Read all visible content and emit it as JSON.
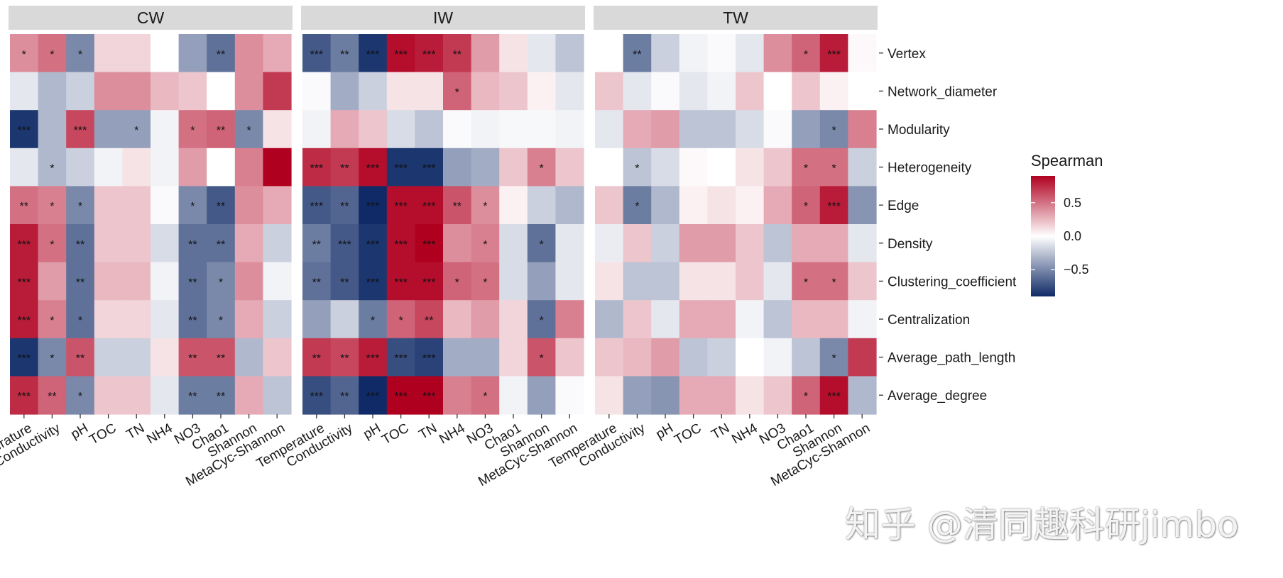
{
  "watermark": "知乎 @清同趣科研jimbo",
  "chart_data": {
    "type": "heatmap",
    "facets": [
      "CW",
      "IW",
      "TW"
    ],
    "x_labels": [
      "Temperature",
      "Conductivity",
      "pH",
      "TOC",
      "TN",
      "NH4",
      "NO3",
      "Chao1",
      "Shannon",
      "MetaCyc-Shannon"
    ],
    "y_labels": [
      "Vertex",
      "Network_diameter",
      "Modularity",
      "Heterogeneity",
      "Edge",
      "Density",
      "Clustering_coefficient",
      "Centralization",
      "Average_path_length",
      "Average_degree"
    ],
    "legend": {
      "title": "Spearman",
      "ticks": [
        0.5,
        0.0,
        -0.5
      ],
      "tick_labels": [
        "0.5",
        "0.0",
        "−0.5"
      ],
      "range": [
        -0.9,
        0.9
      ],
      "low_color": "#0f2a66",
      "mid_color": "#ffffff",
      "high_color": "#b00020"
    },
    "values": {
      "CW": [
        [
          0.4,
          0.5,
          -0.5,
          0.15,
          0.15,
          0.0,
          -0.4,
          -0.6,
          0.4,
          0.3
        ],
        [
          -0.1,
          -0.3,
          -0.2,
          0.4,
          0.4,
          0.25,
          0.2,
          0.0,
          0.4,
          0.7
        ],
        [
          -0.85,
          -0.3,
          0.65,
          -0.4,
          -0.4,
          -0.05,
          0.5,
          0.55,
          -0.5,
          0.1
        ],
        [
          -0.1,
          -0.3,
          -0.2,
          -0.05,
          0.1,
          -0.05,
          0.35,
          0.0,
          0.45,
          0.9
        ],
        [
          0.5,
          0.45,
          -0.5,
          0.2,
          0.2,
          -0.02,
          -0.5,
          -0.7,
          0.4,
          0.3
        ],
        [
          0.8,
          0.5,
          -0.6,
          0.2,
          0.2,
          -0.15,
          -0.6,
          -0.6,
          0.3,
          -0.2
        ],
        [
          0.8,
          0.35,
          -0.6,
          0.25,
          0.25,
          -0.05,
          -0.6,
          -0.5,
          0.4,
          -0.05
        ],
        [
          0.8,
          0.45,
          -0.6,
          0.15,
          0.15,
          -0.1,
          -0.6,
          -0.5,
          0.3,
          -0.2
        ],
        [
          -0.85,
          -0.5,
          0.6,
          -0.2,
          -0.2,
          0.1,
          0.6,
          0.6,
          -0.3,
          0.2
        ],
        [
          0.75,
          0.55,
          -0.5,
          0.2,
          0.2,
          -0.1,
          -0.55,
          -0.55,
          0.3,
          -0.25
        ]
      ],
      "IW": [
        [
          -0.7,
          -0.55,
          -0.85,
          0.85,
          0.8,
          0.7,
          0.35,
          0.1,
          -0.1,
          -0.25
        ],
        [
          -0.02,
          -0.35,
          -0.2,
          0.1,
          0.1,
          0.55,
          0.25,
          0.2,
          0.05,
          -0.1
        ],
        [
          -0.05,
          0.3,
          0.2,
          -0.15,
          -0.25,
          -0.02,
          -0.05,
          -0.03,
          -0.03,
          -0.05
        ],
        [
          0.75,
          0.7,
          0.85,
          -0.85,
          -0.85,
          -0.4,
          -0.35,
          0.2,
          0.45,
          0.2
        ],
        [
          -0.7,
          -0.65,
          -0.9,
          0.85,
          0.85,
          0.6,
          0.4,
          0.05,
          -0.2,
          -0.3
        ],
        [
          -0.55,
          -0.7,
          -0.85,
          0.85,
          0.9,
          0.4,
          0.45,
          -0.15,
          -0.6,
          -0.1
        ],
        [
          -0.6,
          -0.7,
          -0.85,
          0.85,
          0.85,
          0.55,
          0.5,
          -0.15,
          -0.4,
          -0.1
        ],
        [
          -0.4,
          -0.2,
          -0.55,
          0.55,
          0.65,
          0.25,
          0.35,
          0.15,
          -0.6,
          0.45
        ],
        [
          0.7,
          0.65,
          0.8,
          -0.75,
          -0.8,
          -0.35,
          -0.35,
          0.15,
          0.6,
          0.2
        ],
        [
          -0.75,
          -0.65,
          -0.95,
          0.92,
          0.9,
          0.45,
          0.5,
          -0.05,
          -0.4,
          -0.02
        ]
      ],
      "TW": [
        [
          0.0,
          -0.55,
          -0.2,
          -0.05,
          -0.02,
          -0.1,
          0.4,
          0.55,
          0.8,
          0.02
        ],
        [
          0.2,
          -0.1,
          -0.02,
          -0.1,
          -0.05,
          0.2,
          0.0,
          0.2,
          0.05,
          0.0
        ],
        [
          -0.1,
          0.3,
          0.35,
          -0.25,
          -0.25,
          -0.15,
          -0.02,
          -0.4,
          -0.5,
          0.45
        ],
        [
          0.0,
          -0.25,
          -0.15,
          0.02,
          0.0,
          0.1,
          0.2,
          0.5,
          0.5,
          -0.2
        ],
        [
          0.2,
          -0.55,
          -0.3,
          0.05,
          0.1,
          0.05,
          0.3,
          0.55,
          0.8,
          -0.45
        ],
        [
          -0.08,
          0.2,
          -0.2,
          0.35,
          0.35,
          0.2,
          -0.25,
          0.3,
          0.3,
          -0.1
        ],
        [
          0.1,
          -0.25,
          -0.25,
          0.1,
          0.1,
          0.2,
          -0.1,
          0.5,
          0.5,
          0.2
        ],
        [
          -0.3,
          0.2,
          -0.1,
          0.3,
          0.3,
          -0.05,
          -0.25,
          0.25,
          0.25,
          -0.05
        ],
        [
          0.2,
          0.25,
          0.35,
          -0.25,
          -0.2,
          0.0,
          -0.05,
          -0.25,
          -0.5,
          0.7
        ],
        [
          0.1,
          -0.4,
          -0.45,
          0.3,
          0.3,
          0.1,
          0.2,
          0.55,
          0.85,
          -0.3
        ]
      ]
    },
    "significance": {
      "CW": [
        [
          "*",
          "*",
          "*",
          "",
          "",
          "",
          "",
          "**",
          "",
          ""
        ],
        [
          "",
          "",
          "",
          "",
          "",
          "",
          "",
          "",
          "",
          ""
        ],
        [
          "***",
          "",
          "***",
          "",
          "*",
          "",
          "*",
          "**",
          "*",
          ""
        ],
        [
          "",
          "*",
          "",
          "",
          "",
          "",
          "",
          "",
          "",
          ""
        ],
        [
          "**",
          "*",
          "*",
          "",
          "",
          "",
          "*",
          "**",
          "",
          ""
        ],
        [
          "***",
          "*",
          "**",
          "",
          "",
          "",
          "**",
          "**",
          "",
          ""
        ],
        [
          "***",
          "",
          "**",
          "",
          "",
          "",
          "**",
          "*",
          "",
          ""
        ],
        [
          "***",
          "*",
          "*",
          "",
          "",
          "",
          "**",
          "*",
          "",
          ""
        ],
        [
          "***",
          "*",
          "**",
          "",
          "",
          "",
          "**",
          "**",
          "",
          ""
        ],
        [
          "***",
          "**",
          "*",
          "",
          "",
          "",
          "**",
          "**",
          "",
          ""
        ]
      ],
      "IW": [
        [
          "***",
          "**",
          "***",
          "***",
          "***",
          "**",
          "",
          "",
          "",
          ""
        ],
        [
          "",
          "",
          "",
          "",
          "",
          "*",
          "",
          "",
          "",
          ""
        ],
        [
          "",
          "",
          "",
          "",
          "",
          "",
          "",
          "",
          "",
          ""
        ],
        [
          "***",
          "**",
          "***",
          "***",
          "***",
          "",
          "",
          "",
          "*",
          ""
        ],
        [
          "***",
          "**",
          "***",
          "***",
          "***",
          "**",
          "*",
          "",
          "",
          ""
        ],
        [
          "**",
          "***",
          "***",
          "***",
          "***",
          "",
          "*",
          "",
          "*",
          ""
        ],
        [
          "**",
          "**",
          "***",
          "***",
          "***",
          "*",
          "*",
          "",
          "",
          ""
        ],
        [
          "",
          "",
          "*",
          "*",
          "**",
          "",
          "",
          "",
          "*",
          ""
        ],
        [
          "**",
          "**",
          "***",
          "***",
          "***",
          "",
          "",
          "",
          "*",
          ""
        ],
        [
          "***",
          "**",
          "***",
          "***",
          "***",
          "",
          "*",
          "",
          "",
          ""
        ]
      ],
      "TW": [
        [
          "",
          "**",
          "",
          "",
          "",
          "",
          "",
          "*",
          "***",
          ""
        ],
        [
          "",
          "",
          "",
          "",
          "",
          "",
          "",
          "",
          "",
          ""
        ],
        [
          "",
          "",
          "",
          "",
          "",
          "",
          "",
          "",
          "*",
          ""
        ],
        [
          "",
          "*",
          "",
          "",
          "",
          "",
          "",
          "*",
          "*",
          ""
        ],
        [
          "",
          "*",
          "",
          "",
          "",
          "",
          "",
          "*",
          "***",
          ""
        ],
        [
          "",
          "",
          "",
          "",
          "",
          "",
          "",
          "",
          "",
          ""
        ],
        [
          "",
          "",
          "",
          "",
          "",
          "",
          "",
          "*",
          "*",
          ""
        ],
        [
          "",
          "",
          "",
          "",
          "",
          "",
          "",
          "",
          "",
          ""
        ],
        [
          "",
          "",
          "",
          "",
          "",
          "",
          "",
          "",
          "*",
          ""
        ],
        [
          "",
          "",
          "",
          "",
          "",
          "",
          "",
          "*",
          "***",
          ""
        ]
      ]
    }
  }
}
